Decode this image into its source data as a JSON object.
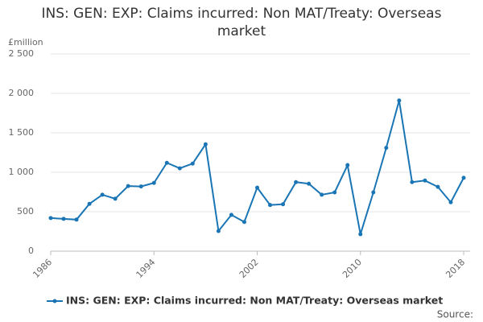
{
  "chart_data": {
    "type": "line",
    "title": "INS: GEN: EXP: Claims incurred: Non MAT/Treaty: Overseas market",
    "y_label": "£million",
    "source": "Source:",
    "x": [
      1986,
      1987,
      1988,
      1989,
      1990,
      1991,
      1992,
      1993,
      1994,
      1995,
      1996,
      1997,
      1998,
      1999,
      2000,
      2001,
      2002,
      2003,
      2004,
      2005,
      2006,
      2007,
      2008,
      2009,
      2010,
      2011,
      2012,
      2013,
      2014,
      2015,
      2016,
      2017,
      2018
    ],
    "series": [
      {
        "name": "INS: GEN: EXP: Claims incurred: Non MAT/Treaty: Overseas market",
        "color": "#1a75b5",
        "values": [
          420,
          410,
          400,
          600,
          715,
          665,
          825,
          820,
          865,
          1120,
          1050,
          1110,
          1355,
          255,
          460,
          370,
          805,
          585,
          595,
          875,
          855,
          715,
          745,
          1090,
          215,
          745,
          1310,
          1910,
          875,
          895,
          815,
          620,
          930
        ]
      }
    ],
    "xlim": [
      1986,
      2018
    ],
    "xticks": [
      1986,
      1994,
      2002,
      2010,
      2018
    ],
    "ylim": [
      0,
      2500
    ],
    "yticks": [
      0,
      500,
      {
        "value": 1000,
        "label": "1 000"
      },
      {
        "value": 1500,
        "label": "1 500"
      },
      {
        "value": 2000,
        "label": "2 000"
      },
      {
        "value": 2500,
        "label": "2 500"
      }
    ],
    "grid": true
  }
}
